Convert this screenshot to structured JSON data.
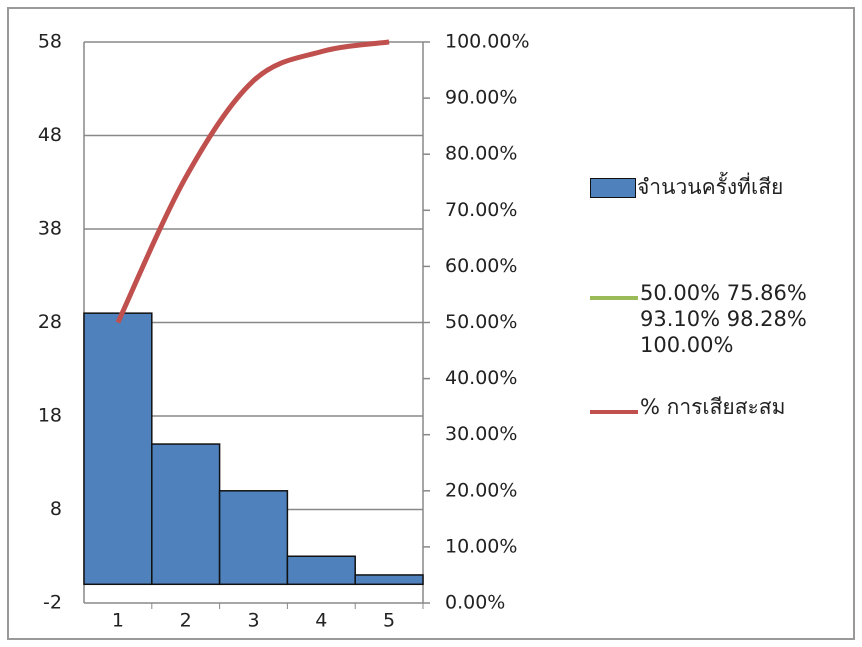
{
  "chart_data": {
    "type": "bar",
    "categories": [
      "1",
      "2",
      "3",
      "4",
      "5"
    ],
    "series": [
      {
        "name": "จำนวนครั้งที่เสีย",
        "type": "bar",
        "color": "#4f81bd",
        "values": [
          29,
          15,
          10,
          3,
          1
        ]
      },
      {
        "name": "50.00% 75.86% 93.10% 98.28% 100.00%",
        "type": "line",
        "color": "#9bbb59"
      },
      {
        "name": "% การเสียสะสม",
        "type": "line",
        "axis": "y2",
        "color": "#c0504d",
        "values": [
          50,
          75.86,
          93.1,
          98.28,
          100
        ]
      }
    ],
    "ylim": [
      -2,
      58
    ],
    "yticks": [
      -2,
      8,
      18,
      28,
      38,
      48,
      58
    ],
    "y2lim": [
      0,
      100
    ],
    "y2ticks": [
      {
        "value": 0,
        "label": "0.00%"
      },
      {
        "value": 10,
        "label": "10.00%"
      },
      {
        "value": 20,
        "label": "20.00%"
      },
      {
        "value": 30,
        "label": "30.00%"
      },
      {
        "value": 40,
        "label": "40.00%"
      },
      {
        "value": 50,
        "label": "50.00%"
      },
      {
        "value": 60,
        "label": "60.00%"
      },
      {
        "value": 70,
        "label": "70.00%"
      },
      {
        "value": 80,
        "label": "80.00%"
      },
      {
        "value": 90,
        "label": "90.00%"
      },
      {
        "value": 100,
        "label": "100.00%"
      }
    ],
    "grid": true
  }
}
